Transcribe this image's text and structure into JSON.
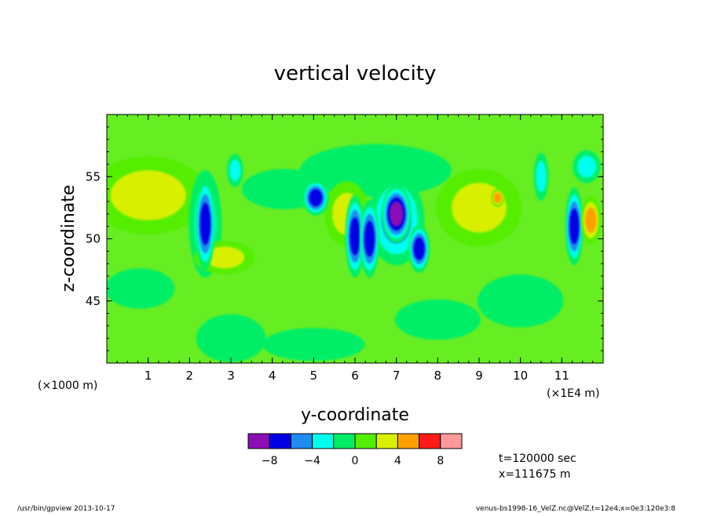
{
  "chart_data": {
    "type": "heatmap",
    "title": "vertical velocity",
    "xlabel": "y-coordinate",
    "ylabel": "z-coordinate",
    "x_unit_left": "(×1000 m)",
    "x_unit_right": "(×1E4 m)",
    "x_range": [
      0,
      12
    ],
    "y_range": [
      40,
      60
    ],
    "x_ticks": [
      1,
      2,
      3,
      4,
      5,
      6,
      7,
      8,
      9,
      10,
      11
    ],
    "y_ticks": [
      45,
      50,
      55
    ],
    "colorbar": {
      "levels": [
        -10,
        -8,
        -6,
        -4,
        -2,
        0,
        2,
        4,
        6,
        8,
        10
      ],
      "colors": [
        "#8b0fb5",
        "#0000e6",
        "#1e8cf0",
        "#00ffee",
        "#00ee66",
        "#55ee00",
        "#d8f000",
        "#ffa000",
        "#ff1a1a",
        "#ff9999"
      ],
      "tick_labels": [
        "−8",
        "−4",
        "0",
        "4",
        "8"
      ],
      "tick_values": [
        -8,
        -4,
        0,
        4,
        8
      ]
    },
    "background_field": "#66ee22",
    "features": [
      {
        "x": 2.38,
        "z": 51.2,
        "rx": 0.1,
        "rz": 3.6,
        "v": -7
      },
      {
        "x": 2.38,
        "z": 51.2,
        "rx": 0.18,
        "rz": 4.2,
        "v": -3
      },
      {
        "x": 3.1,
        "z": 55.5,
        "rx": 0.08,
        "rz": 1.2,
        "v": -3
      },
      {
        "x": 5.05,
        "z": 53.3,
        "rx": 0.14,
        "rz": 1.3,
        "v": -7
      },
      {
        "x": 6.0,
        "z": 50.2,
        "rx": 0.1,
        "rz": 3.2,
        "v": -8
      },
      {
        "x": 6.35,
        "z": 50.0,
        "rx": 0.1,
        "rz": 3.0,
        "v": -7
      },
      {
        "x": 7.0,
        "z": 52.0,
        "rx": 0.16,
        "rz": 2.2,
        "v": -10
      },
      {
        "x": 7.0,
        "z": 51.5,
        "rx": 0.32,
        "rz": 3.5,
        "v": -6
      },
      {
        "x": 7.55,
        "z": 49.2,
        "rx": 0.11,
        "rz": 1.8,
        "v": -7
      },
      {
        "x": 10.5,
        "z": 55.0,
        "rx": 0.07,
        "rz": 1.8,
        "v": -3
      },
      {
        "x": 11.3,
        "z": 51.0,
        "rx": 0.09,
        "rz": 3.0,
        "v": -7
      },
      {
        "x": 11.7,
        "z": 51.5,
        "rx": 0.1,
        "rz": 1.8,
        "v": 5
      },
      {
        "x": 9.45,
        "z": 53.3,
        "rx": 0.06,
        "rz": 0.6,
        "v": 5
      },
      {
        "x": 1.0,
        "z": 53.5,
        "rx": 0.7,
        "rz": 3.0,
        "v": 3
      },
      {
        "x": 9.0,
        "z": 52.5,
        "rx": 0.5,
        "rz": 3.0,
        "v": 3
      },
      {
        "x": 2.85,
        "z": 48.5,
        "rx": 0.35,
        "rz": 1.2,
        "v": 3
      },
      {
        "x": 5.8,
        "z": 52.0,
        "rx": 0.25,
        "rz": 2.5,
        "v": 3
      },
      {
        "x": 4.3,
        "z": 54.0,
        "rx": 0.5,
        "rz": 1.5,
        "v": -1
      },
      {
        "x": 6.5,
        "z": 55.5,
        "rx": 0.9,
        "rz": 2.0,
        "v": -1
      },
      {
        "x": 3.0,
        "z": 42.0,
        "rx": 0.4,
        "rz": 1.8,
        "v": -1
      },
      {
        "x": 8.0,
        "z": 43.5,
        "rx": 0.5,
        "rz": 1.5,
        "v": -1
      },
      {
        "x": 10.0,
        "z": 45.0,
        "rx": 0.5,
        "rz": 2.0,
        "v": -1
      },
      {
        "x": 0.8,
        "z": 46.0,
        "rx": 0.4,
        "rz": 1.5,
        "v": -1
      },
      {
        "x": 5.0,
        "z": 41.5,
        "rx": 0.6,
        "rz": 1.2,
        "v": -1
      },
      {
        "x": 11.6,
        "z": 55.8,
        "rx": 0.15,
        "rz": 1.2,
        "v": -3
      }
    ],
    "annotations": {
      "time": "t=120000 sec",
      "position": "x=111675 m"
    }
  },
  "footer": {
    "left": "/usr/bin/gpview   2013-10-17",
    "right": "venus-bs1998-16_VelZ.nc@VelZ,t=12e4,x=0e3:120e3:8"
  }
}
